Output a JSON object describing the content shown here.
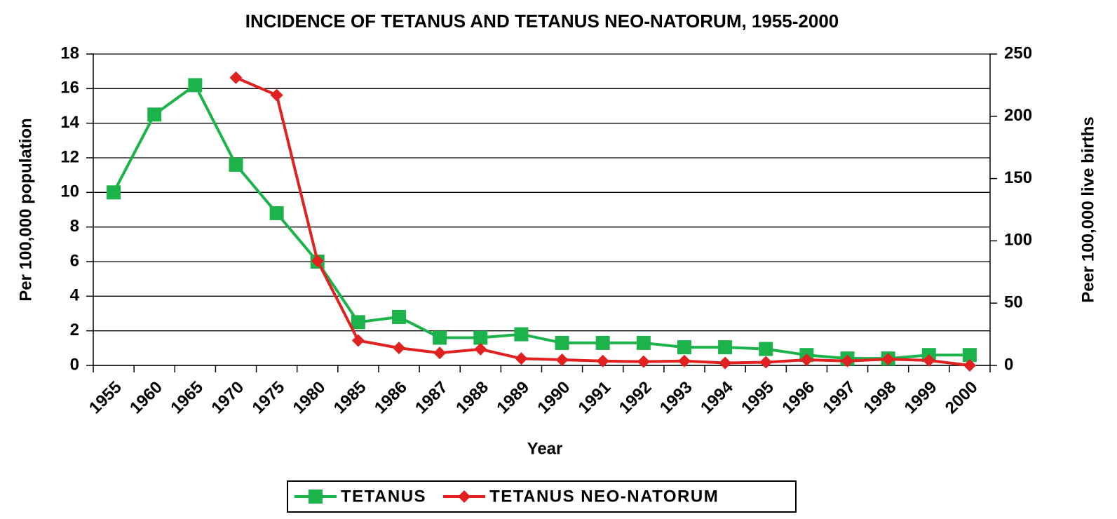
{
  "chart_data": {
    "type": "line",
    "title": "INCIDENCE OF TETANUS AND TETANUS NEO-NATORUM, 1955-2000",
    "x_label": "Year",
    "y_label": "Per 100,000 population",
    "y2_label": "Peer 100,000 live births",
    "categories": [
      "1955",
      "1960",
      "1965",
      "1970",
      "1975",
      "1980",
      "1985",
      "1986",
      "1987",
      "1988",
      "1989",
      "1990",
      "1991",
      "1992",
      "1993",
      "1994",
      "1995",
      "1996",
      "1997",
      "1998",
      "1999",
      "2000"
    ],
    "series": [
      {
        "name": "TETANUS",
        "color": "#1db34b",
        "marker": "square",
        "values": [
          10,
          14.5,
          16.2,
          11.6,
          8.8,
          6.0,
          2.5,
          2.8,
          1.6,
          1.6,
          1.8,
          1.3,
          1.3,
          1.3,
          1.05,
          1.05,
          0.95,
          0.6,
          0.4,
          0.4,
          0.6,
          0.6
        ]
      },
      {
        "name": "TETANUS NEO-NATORUM",
        "color": "#e0211f",
        "marker": "diamond",
        "axis": "y2",
        "values": [
          null,
          null,
          null,
          231,
          217,
          84,
          20,
          14,
          10,
          13,
          5.5,
          4.5,
          3.5,
          3,
          3.5,
          2,
          2.5,
          4.5,
          3.5,
          5,
          4,
          0
        ]
      }
    ],
    "ylim": [
      0,
      18
    ],
    "yticks": [
      0,
      2,
      4,
      6,
      8,
      10,
      12,
      14,
      16,
      18
    ],
    "y2lim": [
      0,
      250
    ],
    "y2ticks": [
      0,
      50,
      100,
      150,
      200,
      250
    ],
    "grid": true,
    "legend": "bottom"
  }
}
